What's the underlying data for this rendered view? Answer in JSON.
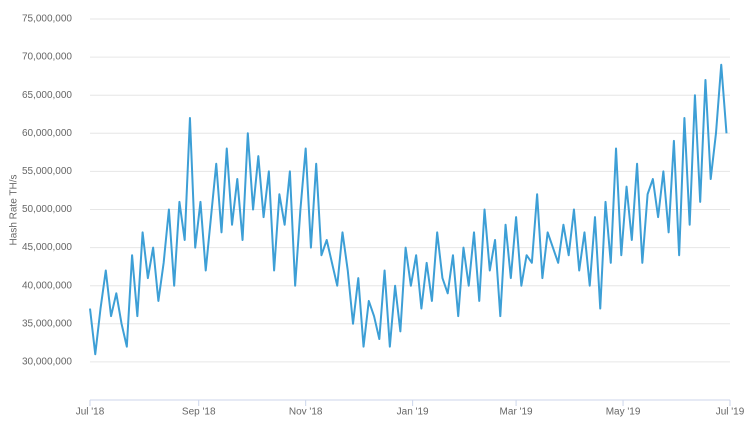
{
  "chart_data": {
    "type": "line",
    "y_label": "Hash Rate TH/s",
    "x": [
      0,
      3,
      6,
      9,
      12,
      15,
      18,
      21,
      24,
      27,
      30,
      33,
      36,
      39,
      42,
      45,
      48,
      51,
      54,
      57,
      60,
      63,
      66,
      69,
      72,
      75,
      78,
      81,
      84,
      87,
      90,
      93,
      96,
      99,
      102,
      105,
      108,
      111,
      114,
      117,
      120,
      123,
      126,
      129,
      132,
      135,
      138,
      141,
      144,
      147,
      150,
      153,
      156,
      159,
      162,
      165,
      168,
      171,
      174,
      177,
      180,
      183,
      186,
      189,
      192,
      195,
      198,
      201,
      204,
      207,
      210,
      213,
      216,
      219,
      222,
      225,
      228,
      231,
      234,
      237,
      240,
      243,
      246,
      249,
      252,
      255,
      258,
      261,
      264,
      267,
      270,
      273,
      276,
      279,
      282,
      285,
      288,
      291,
      294,
      297,
      300,
      303,
      306,
      309,
      312,
      315,
      318,
      321,
      324,
      327,
      330,
      333,
      336,
      339,
      342,
      345,
      348,
      351,
      354,
      357,
      360,
      363
    ],
    "series": [
      {
        "color": "#3d9fd6",
        "values": [
          37000000,
          31000000,
          37000000,
          42000000,
          36000000,
          39000000,
          35000000,
          32000000,
          44000000,
          36000000,
          47000000,
          41000000,
          45000000,
          38000000,
          43000000,
          50000000,
          40000000,
          51000000,
          46000000,
          62000000,
          45000000,
          51000000,
          42000000,
          49000000,
          56000000,
          47000000,
          58000000,
          48000000,
          54000000,
          46000000,
          60000000,
          50000000,
          57000000,
          49000000,
          55000000,
          42000000,
          52000000,
          48000000,
          55000000,
          40000000,
          50000000,
          58000000,
          45000000,
          56000000,
          44000000,
          46000000,
          43000000,
          40000000,
          47000000,
          42000000,
          35000000,
          41000000,
          32000000,
          38000000,
          36000000,
          33000000,
          42000000,
          32000000,
          40000000,
          34000000,
          45000000,
          40000000,
          44000000,
          37000000,
          43000000,
          38000000,
          47000000,
          41000000,
          39000000,
          44000000,
          36000000,
          45000000,
          40000000,
          47000000,
          38000000,
          50000000,
          42000000,
          46000000,
          36000000,
          48000000,
          41000000,
          49000000,
          40000000,
          44000000,
          43000000,
          52000000,
          41000000,
          47000000,
          45000000,
          43000000,
          48000000,
          44000000,
          50000000,
          42000000,
          47000000,
          40000000,
          49000000,
          37000000,
          51000000,
          43000000,
          58000000,
          44000000,
          53000000,
          46000000,
          56000000,
          43000000,
          52000000,
          54000000,
          49000000,
          55000000,
          47000000,
          59000000,
          44000000,
          62000000,
          48000000,
          65000000,
          51000000,
          67000000,
          54000000,
          60000000,
          69000000,
          60000000
        ]
      }
    ],
    "xlim": [
      0,
      365
    ],
    "xticks": [
      {
        "value": 0,
        "label": "Jul '18"
      },
      {
        "value": 62,
        "label": "Sep '18"
      },
      {
        "value": 123,
        "label": "Nov '18"
      },
      {
        "value": 184,
        "label": "Jan '19"
      },
      {
        "value": 243,
        "label": "Mar '19"
      },
      {
        "value": 304,
        "label": "May '19"
      },
      {
        "value": 365,
        "label": "Jul '19"
      }
    ],
    "ylim": [
      25000000,
      75000000
    ],
    "yticks": [
      {
        "value": 30000000,
        "label": "30,000,000"
      },
      {
        "value": 35000000,
        "label": "35,000,000"
      },
      {
        "value": 40000000,
        "label": "40,000,000"
      },
      {
        "value": 45000000,
        "label": "45,000,000"
      },
      {
        "value": 50000000,
        "label": "50,000,000"
      },
      {
        "value": 55000000,
        "label": "55,000,000"
      },
      {
        "value": 60000000,
        "label": "60,000,000"
      },
      {
        "value": 65000000,
        "label": "65,000,000"
      },
      {
        "value": 70000000,
        "label": "70,000,000"
      },
      {
        "value": 75000000,
        "label": "75,000,000"
      }
    ],
    "grid": true
  }
}
